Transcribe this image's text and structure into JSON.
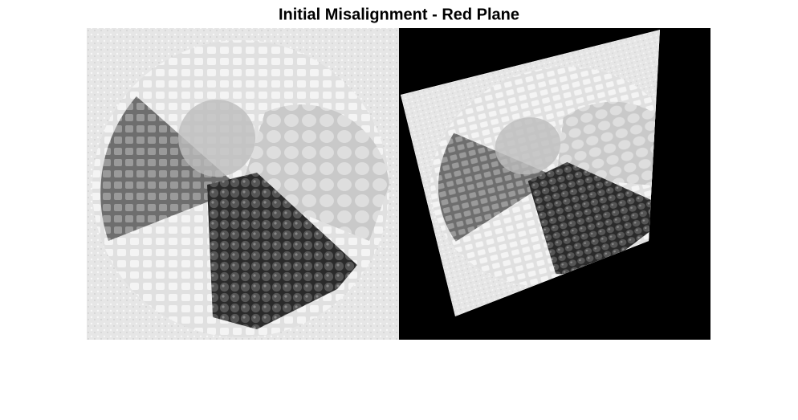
{
  "title": "Initial Misalignment - Red Plane"
}
